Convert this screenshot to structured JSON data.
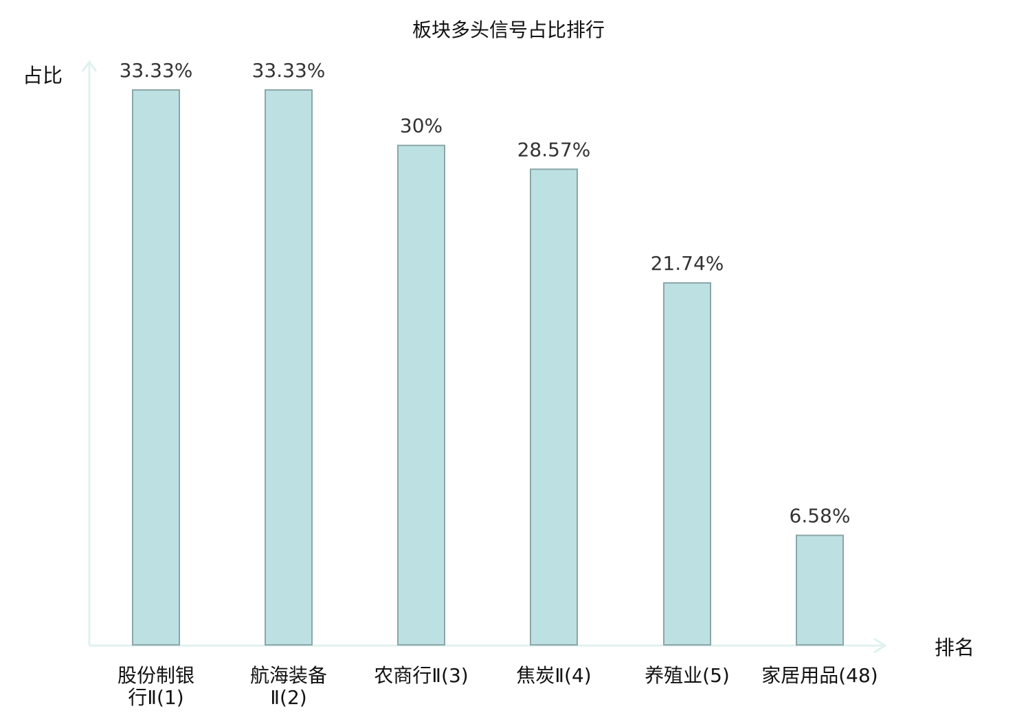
{
  "chart_data": {
    "type": "bar",
    "title": "板块多头信号占比排行",
    "xlabel": "排名",
    "ylabel": "占比",
    "ylim": [
      0,
      33.33
    ],
    "grid": false,
    "unit": "%",
    "categories": [
      "股份制银行Ⅱ(1)",
      "航海装备Ⅱ(2)",
      "农商行Ⅱ(3)",
      "焦炭Ⅱ(4)",
      "养殖业(5)",
      "家居用品(48)"
    ],
    "category_lines": [
      [
        "股份制银",
        "行Ⅱ(1)"
      ],
      [
        "航海装备",
        "Ⅱ(2)"
      ],
      [
        "农商行Ⅱ(3)"
      ],
      [
        "焦炭Ⅱ(4)"
      ],
      [
        "养殖业(5)"
      ],
      [
        "家居用品(48)"
      ]
    ],
    "values": [
      33.33,
      33.33,
      30,
      28.57,
      21.74,
      6.58
    ],
    "value_labels": [
      "33.33%",
      "33.33%",
      "30%",
      "28.57%",
      "21.74%",
      "6.58%"
    ],
    "highlight_index": 5,
    "colors": {
      "bar_fill": "#bde1e3",
      "bar_stroke": "#8aa6a7",
      "axis": "#dff2ef",
      "highlight_label": "#dd0000",
      "label_text": "#111111",
      "value_text": "#333333"
    }
  }
}
